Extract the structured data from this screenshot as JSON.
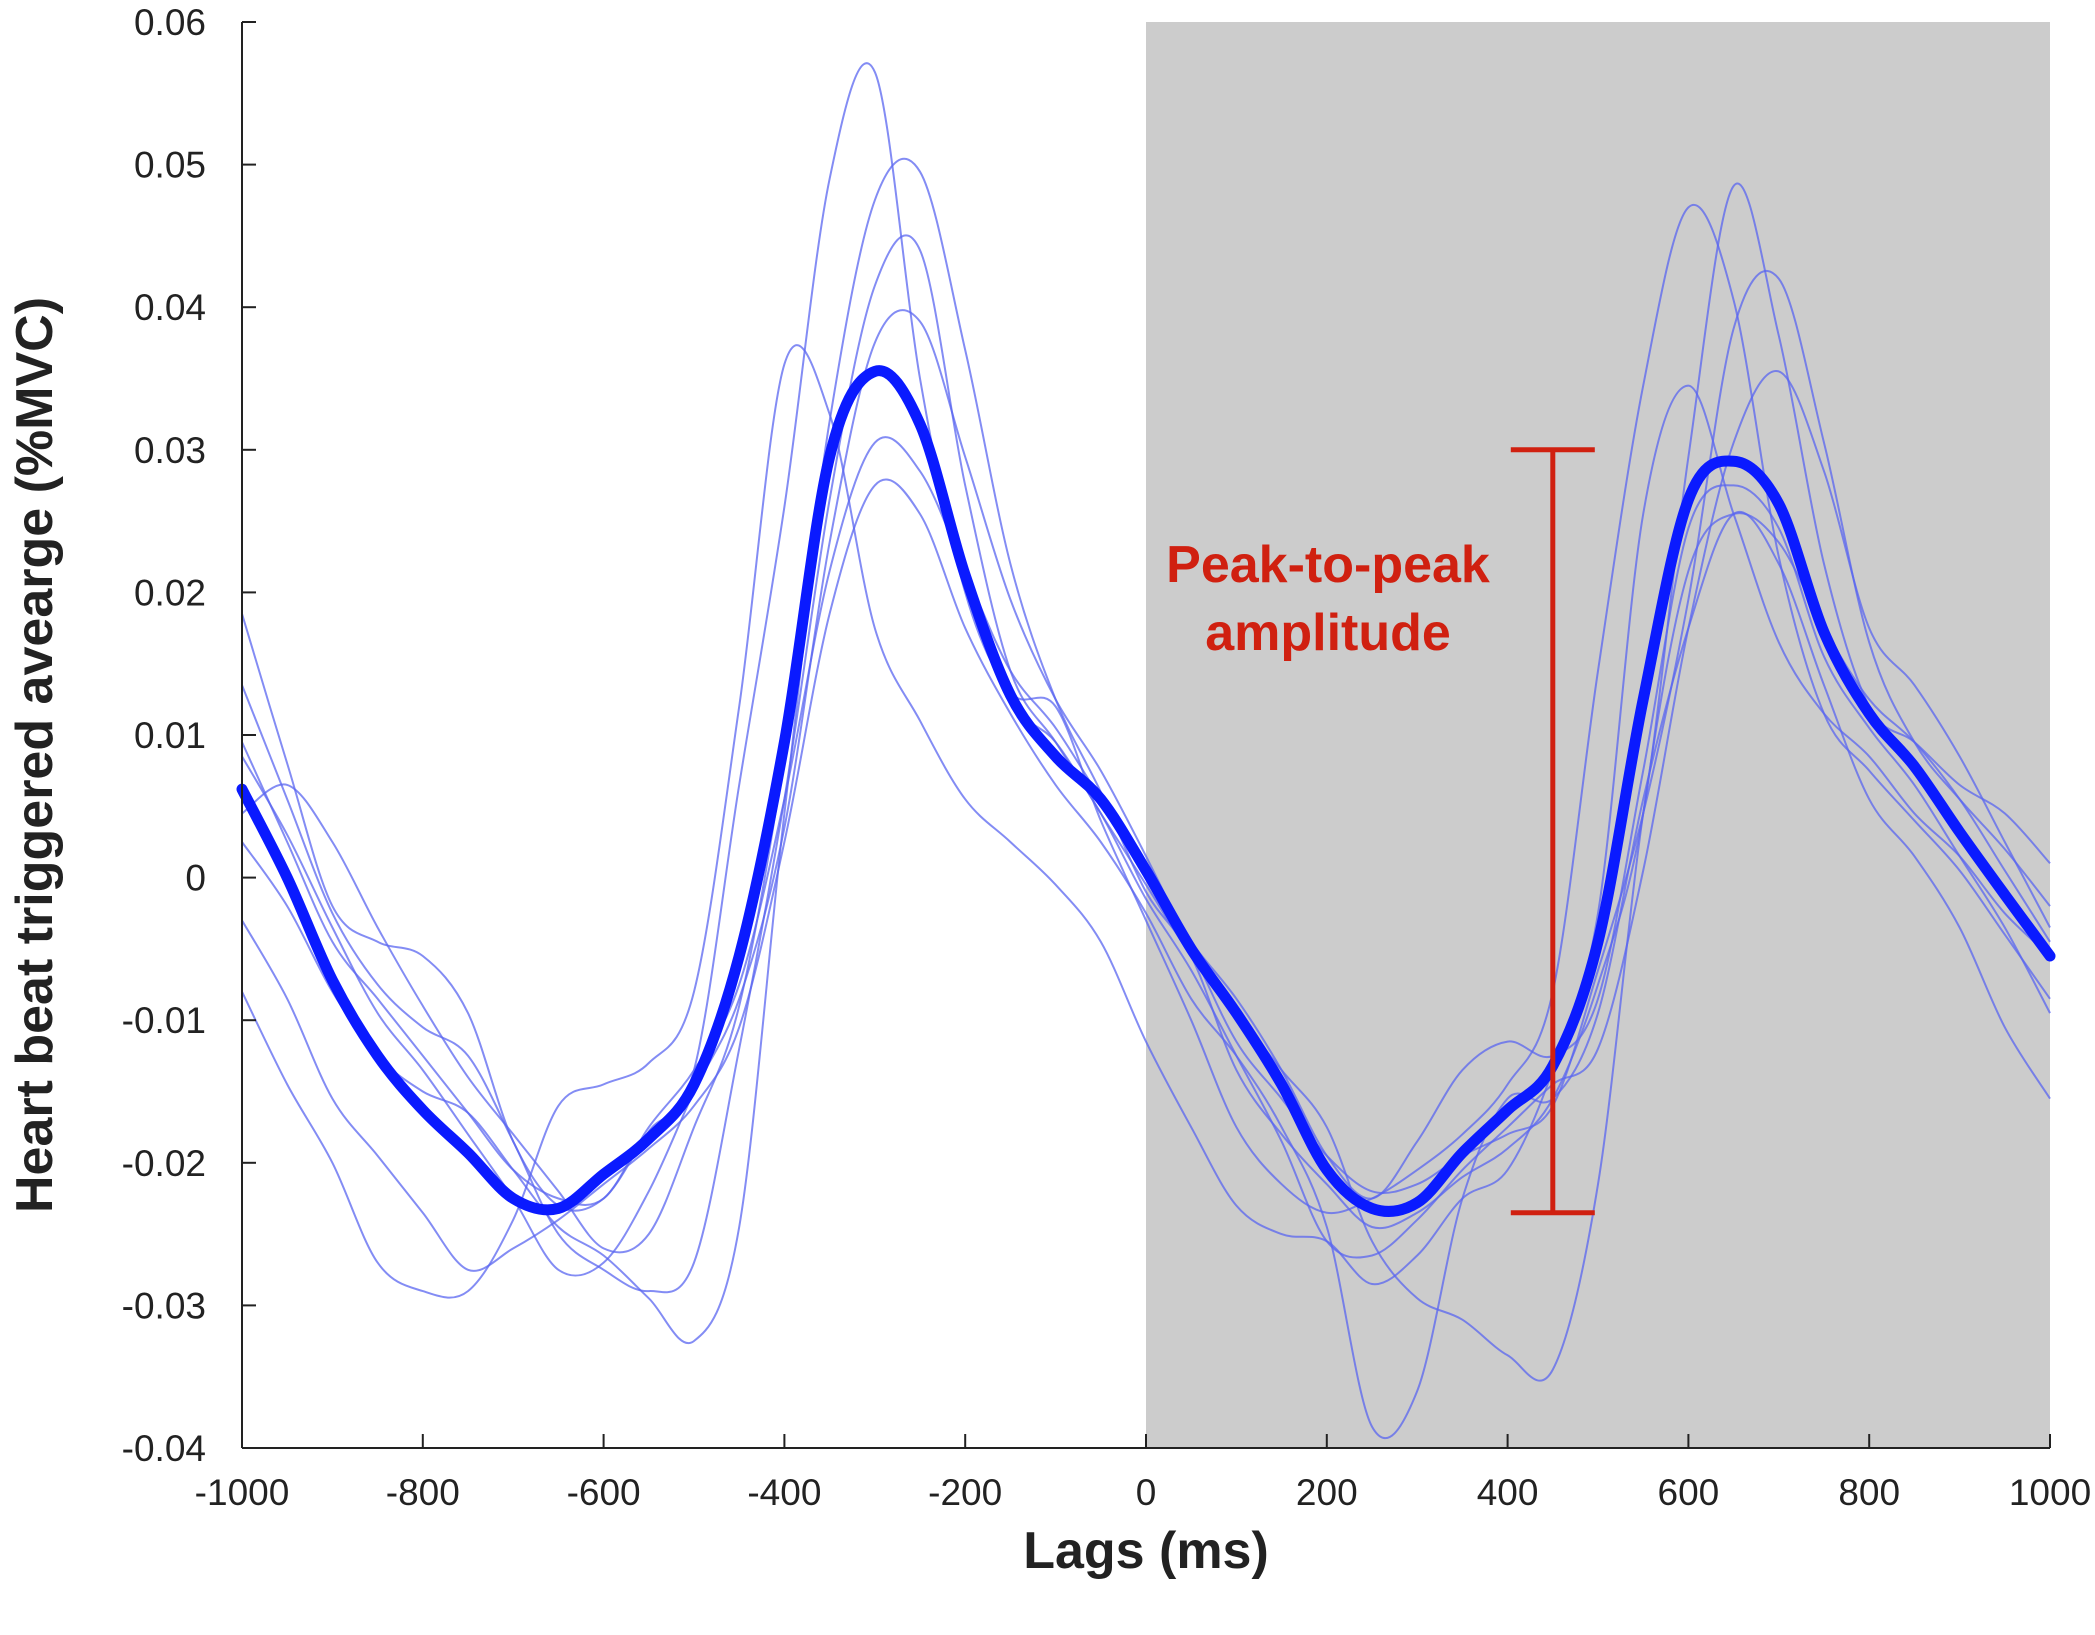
{
  "chart_data": {
    "type": "line",
    "xlabel": "Lags (ms)",
    "ylabel": "Heart beat triggered avearge (%MVC)",
    "xlim": [
      -1000,
      1000
    ],
    "ylim": [
      -0.04,
      0.06
    ],
    "x_ticks": [
      -1000,
      -800,
      -600,
      -400,
      -200,
      0,
      200,
      400,
      600,
      800,
      1000
    ],
    "y_ticks": [
      -0.04,
      -0.03,
      -0.02,
      -0.01,
      0,
      0.01,
      0.02,
      0.03,
      0.04,
      0.05,
      0.06
    ],
    "x_tick_labels": [
      "-1000",
      "-800",
      "-600",
      "-400",
      "-200",
      "0",
      "200",
      "400",
      "600",
      "800",
      "1000"
    ],
    "y_tick_labels": [
      "-0.04",
      "-0.03",
      "-0.02",
      "-0.01",
      "0",
      "0.01",
      "0.02",
      "0.03",
      "0.04",
      "0.05",
      "0.06"
    ],
    "grid": false,
    "shaded_region": {
      "x": [
        0,
        1000
      ],
      "color": "#cccccc"
    },
    "mean_series": {
      "color": "#0a1aff",
      "x": [
        -1000,
        -950,
        -900,
        -850,
        -800,
        -750,
        -700,
        -650,
        -600,
        -550,
        -500,
        -450,
        -400,
        -350,
        -300,
        -250,
        -200,
        -150,
        -100,
        -50,
        0,
        50,
        100,
        150,
        200,
        250,
        300,
        350,
        400,
        450,
        500,
        550,
        600,
        650,
        700,
        750,
        800,
        850,
        900,
        950,
        1000
      ],
      "values": [
        0.0062,
        0.0,
        -0.0072,
        -0.0125,
        -0.0163,
        -0.0193,
        -0.0225,
        -0.0232,
        -0.0208,
        -0.0183,
        -0.0145,
        -0.0055,
        0.0095,
        0.0295,
        0.0355,
        0.0318,
        0.0212,
        0.0128,
        0.0085,
        0.0055,
        0.0005,
        -0.005,
        -0.0095,
        -0.0145,
        -0.0205,
        -0.0232,
        -0.0228,
        -0.0193,
        -0.0163,
        -0.0132,
        -0.0045,
        0.0125,
        0.0265,
        0.0292,
        0.0262,
        0.0172,
        0.0115,
        0.0078,
        0.0032,
        -0.0012,
        -0.0055
      ]
    },
    "individual_series": {
      "color": "#5a66f0",
      "x": [
        -1000,
        -950,
        -900,
        -850,
        -800,
        -750,
        -700,
        -650,
        -600,
        -550,
        -500,
        -450,
        -400,
        -350,
        -300,
        -250,
        -200,
        -150,
        -100,
        -50,
        0,
        50,
        100,
        150,
        200,
        250,
        300,
        350,
        400,
        450,
        500,
        550,
        600,
        650,
        700,
        750,
        800,
        850,
        900,
        950,
        1000
      ],
      "series": [
        {
          "values": [
            0.0185,
            0.008,
            -0.002,
            -0.0045,
            -0.0055,
            -0.0095,
            -0.0185,
            -0.023,
            -0.0225,
            -0.0178,
            -0.0135,
            0.0065,
            0.026,
            0.049,
            0.0565,
            0.035,
            0.02,
            0.013,
            0.012,
            0.004,
            -0.003,
            -0.01,
            -0.0175,
            -0.0215,
            -0.0235,
            -0.0225,
            -0.0205,
            -0.018,
            -0.0145,
            -0.008,
            0.0145,
            0.0345,
            0.047,
            0.0405,
            0.0225,
            0.0115,
            0.0075,
            0.004,
            0.0005,
            -0.004,
            -0.0085
          ]
        },
        {
          "values": [
            0.0045,
            0.0065,
            0.0025,
            -0.0035,
            -0.009,
            -0.014,
            -0.018,
            -0.022,
            -0.026,
            -0.025,
            -0.0175,
            -0.009,
            0.0085,
            0.032,
            0.0475,
            0.0495,
            0.037,
            0.022,
            0.0125,
            0.006,
            -0.001,
            -0.0055,
            -0.0135,
            -0.018,
            -0.0215,
            -0.0245,
            -0.0235,
            -0.021,
            -0.019,
            -0.0155,
            -0.0075,
            0.0045,
            0.0295,
            0.0485,
            0.038,
            0.022,
            0.012,
            0.0095,
            0.0065,
            0.0045,
            0.001
          ]
        },
        {
          "values": [
            0.0085,
            0.003,
            -0.0035,
            -0.0095,
            -0.0135,
            -0.018,
            -0.0225,
            -0.0275,
            -0.027,
            -0.022,
            -0.015,
            -0.0085,
            0.0035,
            0.0235,
            0.0375,
            0.039,
            0.0295,
            0.0195,
            0.0125,
            0.0075,
            0.0015,
            -0.005,
            -0.0115,
            -0.0155,
            -0.0195,
            -0.022,
            -0.0215,
            -0.0195,
            -0.018,
            -0.016,
            -0.0065,
            0.0045,
            0.0195,
            0.0385,
            0.042,
            0.0305,
            0.0165,
            0.0095,
            0.0055,
            0.002,
            -0.002
          ]
        },
        {
          "values": [
            -0.003,
            -0.0085,
            -0.0155,
            -0.0195,
            -0.0235,
            -0.0275,
            -0.026,
            -0.024,
            -0.0215,
            -0.019,
            -0.016,
            -0.0105,
            0.0025,
            0.0185,
            0.0275,
            0.0255,
            0.0175,
            0.0115,
            0.0065,
            0.0025,
            -0.0025,
            -0.0085,
            -0.0125,
            -0.0175,
            -0.0245,
            -0.0385,
            -0.036,
            -0.0225,
            -0.0155,
            -0.0155,
            -0.0095,
            0.0055,
            0.0175,
            0.0255,
            0.022,
            0.0135,
            0.0055,
            0.0015,
            -0.0035,
            -0.0105,
            -0.0155
          ]
        },
        {
          "values": [
            0.0135,
            0.0055,
            -0.0025,
            -0.0075,
            -0.0105,
            -0.0125,
            -0.0185,
            -0.025,
            -0.0275,
            -0.029,
            -0.027,
            -0.012,
            0.0055,
            0.0265,
            0.0415,
            0.044,
            0.0275,
            0.0145,
            0.0095,
            0.0045,
            -0.0015,
            -0.0065,
            -0.0125,
            -0.0185,
            -0.0255,
            -0.0265,
            -0.024,
            -0.0205,
            -0.0175,
            -0.0145,
            -0.012,
            0.0005,
            0.0175,
            0.0305,
            0.0355,
            0.0285,
            0.0175,
            0.0135,
            0.0085,
            0.0025,
            -0.0035
          ]
        },
        {
          "values": [
            -0.008,
            -0.0145,
            -0.02,
            -0.027,
            -0.029,
            -0.029,
            -0.024,
            -0.016,
            -0.0145,
            -0.013,
            -0.008,
            0.012,
            0.036,
            0.0325,
            0.0175,
            0.011,
            0.0055,
            0.0025,
            -0.0005,
            -0.0045,
            -0.0115,
            -0.0175,
            -0.023,
            -0.025,
            -0.0255,
            -0.0285,
            -0.0265,
            -0.0225,
            -0.0205,
            -0.0135,
            -0.0025,
            0.0255,
            0.0345,
            0.0255,
            0.0165,
            0.0115,
            0.0085,
            0.0045,
            0.0015,
            -0.0025,
            -0.0055
          ]
        },
        {
          "values": [
            0.0025,
            -0.002,
            -0.008,
            -0.0125,
            -0.015,
            -0.0165,
            -0.0205,
            -0.0245,
            -0.0265,
            -0.0295,
            -0.0325,
            -0.0245,
            0.0045,
            0.0295,
            0.0355,
            0.0315,
            0.0215,
            0.0125,
            0.0095,
            0.0045,
            -0.0005,
            -0.0055,
            -0.0095,
            -0.0135,
            -0.0175,
            -0.0255,
            -0.0295,
            -0.031,
            -0.0335,
            -0.0345,
            -0.0215,
            0.0045,
            0.0215,
            0.0255,
            0.0235,
            0.0175,
            0.0125,
            0.0095,
            0.0055,
            0.0005,
            -0.0045
          ]
        },
        {
          "values": [
            0.0095,
            0.0025,
            -0.0045,
            -0.0085,
            -0.0125,
            -0.0165,
            -0.0205,
            -0.0225,
            -0.0225,
            -0.0175,
            -0.0135,
            -0.0075,
            0.0055,
            0.0215,
            0.0305,
            0.0285,
            0.0215,
            0.0145,
            0.0105,
            0.0055,
            0.0005,
            -0.0045,
            -0.0085,
            -0.0135,
            -0.0195,
            -0.0225,
            -0.0185,
            -0.0135,
            -0.0115,
            -0.0125,
            -0.0085,
            0.0075,
            0.0245,
            0.0275,
            0.0245,
            0.0155,
            0.0105,
            0.0065,
            0.0015,
            -0.0035,
            -0.0095
          ]
        }
      ]
    },
    "annotation": {
      "text_line1": "Peak-to-peak",
      "text_line2": "amplitude",
      "color": "#d02010",
      "x": 450,
      "y_top": 0.03,
      "y_bottom": -0.0235
    }
  }
}
